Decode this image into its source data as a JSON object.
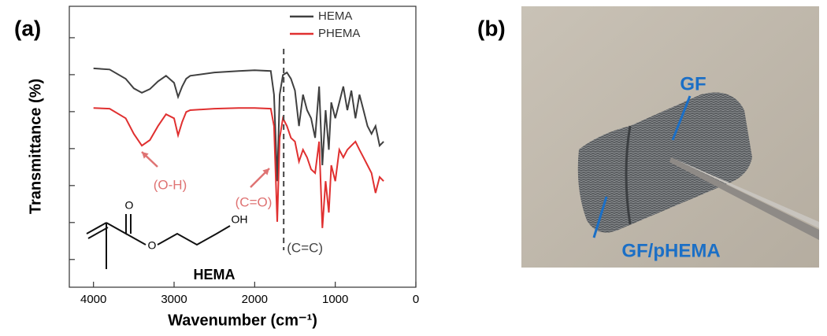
{
  "panel_labels": [
    "(a)",
    "(b)"
  ],
  "chart_data": {
    "type": "line",
    "x_label": "Wavenumber (cm⁻¹)",
    "y_label": "Transmittance (%)",
    "xlim": [
      4300,
      0
    ],
    "xticks": [
      4000,
      3000,
      2000,
      1000,
      0
    ],
    "ylim": [
      0.25,
      7.85
    ],
    "yticks": [
      1,
      2,
      3,
      4,
      5,
      6,
      7
    ],
    "legend": "upper right",
    "x": [
      4000,
      3800,
      3600,
      3500,
      3400,
      3300,
      3200,
      3100,
      3000,
      2950,
      2900,
      2850,
      2800,
      2500,
      2200,
      2000,
      1800,
      1760,
      1720,
      1690,
      1650,
      1600,
      1550,
      1500,
      1450,
      1400,
      1350,
      1300,
      1250,
      1200,
      1160,
      1120,
      1080,
      1050,
      1000,
      950,
      900,
      850,
      800,
      750,
      700,
      650,
      600,
      550,
      500,
      450,
      400
    ],
    "series": [
      {
        "name": "HEMA",
        "color": "#404040",
        "values": [
          6.17,
          6.14,
          5.89,
          5.63,
          5.51,
          5.61,
          5.82,
          5.97,
          5.78,
          5.4,
          5.68,
          5.89,
          5.97,
          6.06,
          6.1,
          6.12,
          6.1,
          5.46,
          3.12,
          5.46,
          5.99,
          6.06,
          5.89,
          5.57,
          4.61,
          5.46,
          5.04,
          4.82,
          4.29,
          5.68,
          3.55,
          5.04,
          3.97,
          5.25,
          4.82,
          5.25,
          5.68,
          5.04,
          5.57,
          4.82,
          5.46,
          5.04,
          4.61,
          4.4,
          4.61,
          4.08,
          4.19
        ]
      },
      {
        "name": "PHEMA",
        "color": "#e03030",
        "values": [
          5.1,
          5.08,
          4.82,
          4.4,
          4.08,
          4.23,
          4.61,
          4.93,
          4.82,
          4.36,
          4.72,
          4.99,
          5.04,
          5.08,
          5.1,
          5.1,
          5.08,
          4.61,
          2.02,
          4.29,
          4.82,
          4.61,
          4.29,
          4.19,
          3.65,
          3.97,
          3.76,
          3.44,
          3.34,
          4.19,
          1.85,
          3.12,
          2.27,
          3.55,
          3.12,
          3.97,
          3.76,
          3.97,
          4.08,
          4.19,
          3.97,
          3.76,
          3.55,
          3.34,
          2.8,
          3.23,
          3.12
        ]
      }
    ],
    "vline": {
      "x": 1640,
      "label": "(C=C)"
    },
    "annotations": [
      "(O-H)",
      "(C=O)"
    ]
  },
  "structure": {
    "atoms": [
      "O",
      "O",
      "OH"
    ],
    "name": "HEMA"
  },
  "photo": {
    "labels": [
      "GF",
      "GF/pHEMA"
    ]
  }
}
